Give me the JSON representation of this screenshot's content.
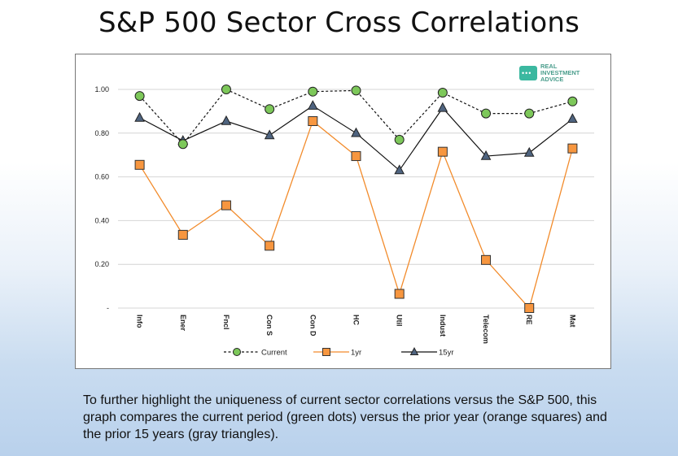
{
  "title": "S&P 500 Sector Cross Correlations",
  "logo": {
    "line1": "REAL",
    "line2": "INVESTMENT",
    "line3": "ADVICE",
    "color": "#3bb8a0"
  },
  "caption": "To further highlight the uniqueness of current sector correlations versus the S&P 500, this graph compares the current period (green dots) versus the prior year (orange squares) and the prior 15 years (gray triangles).",
  "chart_data": {
    "type": "line",
    "title": "S&P 500 Sector Cross Correlations",
    "categories": [
      "Info",
      "Ener",
      "Fncl",
      "Con S",
      "Con D",
      "HC",
      "Util",
      "Indust",
      "Telecom",
      "RE",
      "Mat"
    ],
    "ylim": [
      0,
      1.0
    ],
    "yticks": [
      {
        "value": 0,
        "label": "-"
      },
      {
        "value": 0.2,
        "label": "0.20"
      },
      {
        "value": 0.4,
        "label": "0.40"
      },
      {
        "value": 0.6,
        "label": "0.60"
      },
      {
        "value": 0.8,
        "label": "0.80"
      },
      {
        "value": 1.0,
        "label": "1.00"
      }
    ],
    "grid": true,
    "legend_position": "bottom",
    "series": [
      {
        "name": "Current",
        "marker": "circle",
        "dash": true,
        "line_color": "#111111",
        "marker_color": "#7dc85a",
        "values": [
          0.97,
          0.75,
          1.0,
          0.91,
          0.99,
          0.995,
          0.77,
          0.985,
          0.89,
          0.89,
          0.945
        ]
      },
      {
        "name": "1yr",
        "marker": "square",
        "dash": false,
        "line_color": "#f28b2b",
        "marker_color": "#f7963f",
        "values": [
          0.655,
          0.335,
          0.47,
          0.285,
          0.855,
          0.695,
          0.065,
          0.715,
          0.22,
          0.0,
          0.73
        ]
      },
      {
        "name": "15yr",
        "marker": "triangle",
        "dash": false,
        "line_color": "#111111",
        "marker_color": "#4f6480",
        "values": [
          0.87,
          0.765,
          0.855,
          0.79,
          0.925,
          0.8,
          0.63,
          0.915,
          0.695,
          0.71,
          0.865
        ]
      }
    ]
  }
}
